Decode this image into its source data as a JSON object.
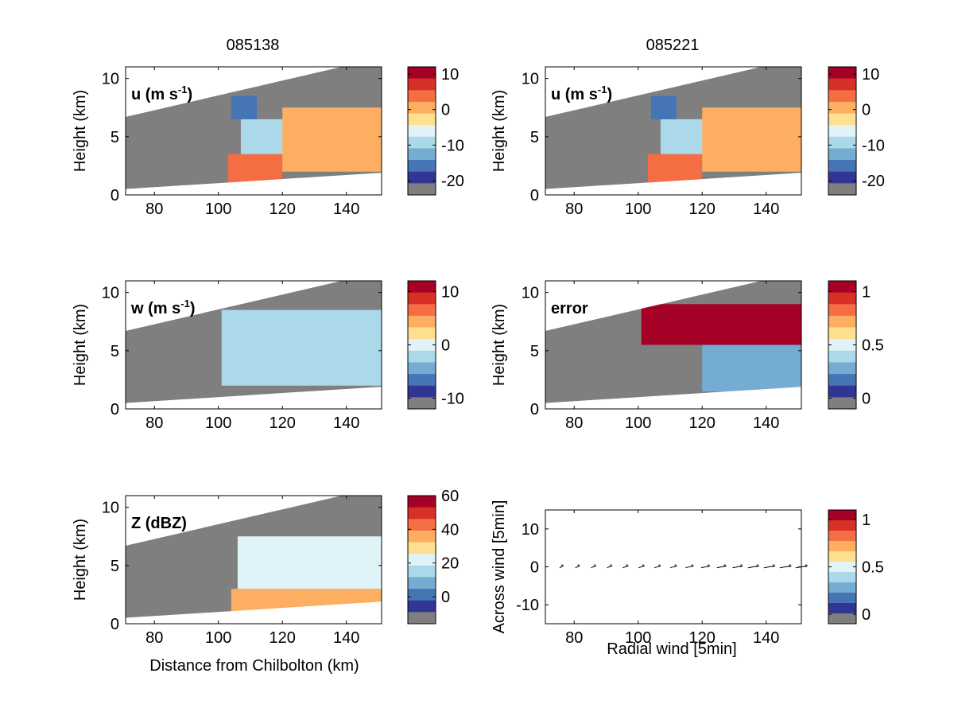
{
  "figure": {
    "columns": [
      "085138",
      "085221"
    ],
    "xlabel_bottom_left": "Distance from Chilbolton (km)",
    "xlabel_bottom_right": "Radial wind [5min]"
  },
  "colors": {
    "gray": "#7f7f7f",
    "scale": [
      "#313695",
      "#4575b4",
      "#74add1",
      "#abd9e9",
      "#e0f3f8",
      "#fee090",
      "#fdae61",
      "#f46d43",
      "#d73027",
      "#a50026"
    ]
  },
  "chart_data": [
    {
      "id": "u1",
      "type": "heatmap",
      "annotation": "u (m s-1)",
      "annotation_main": "u (m s",
      "annotation_sup": "-1",
      "annotation_tail": ")",
      "ylabel": "Height (km)",
      "xlim": [
        71,
        151
      ],
      "ylim": [
        0,
        11
      ],
      "xticks": [
        80,
        100,
        120,
        140
      ],
      "yticks": [
        0,
        5,
        10
      ],
      "colorbar": {
        "ticks": [
          10,
          0,
          -10,
          -20
        ],
        "range": [
          -24,
          12
        ]
      },
      "regions": [
        {
          "x": [
            103,
            120
          ],
          "y": [
            1.0,
            3.5
          ],
          "value": 3
        },
        {
          "x": [
            107,
            125
          ],
          "y": [
            3.5,
            6.5
          ],
          "value": -10
        },
        {
          "x": [
            120,
            151
          ],
          "y": [
            2.0,
            7.5
          ],
          "value": 2
        },
        {
          "x": [
            104,
            112
          ],
          "y": [
            6.5,
            8.5
          ],
          "value": -16
        }
      ]
    },
    {
      "id": "u2",
      "type": "heatmap",
      "annotation": "u (m s-1)",
      "annotation_main": "u (m s",
      "annotation_sup": "-1",
      "annotation_tail": ")",
      "ylabel": "Height (km)",
      "xlim": [
        71,
        151
      ],
      "ylim": [
        0,
        11
      ],
      "xticks": [
        80,
        100,
        120,
        140
      ],
      "yticks": [
        0,
        5,
        10
      ],
      "colorbar": {
        "ticks": [
          10,
          0,
          -10,
          -20
        ],
        "range": [
          -24,
          12
        ]
      },
      "regions": [
        {
          "x": [
            103,
            120
          ],
          "y": [
            1.0,
            3.5
          ],
          "value": 3
        },
        {
          "x": [
            107,
            125
          ],
          "y": [
            3.5,
            6.5
          ],
          "value": -10
        },
        {
          "x": [
            120,
            151
          ],
          "y": [
            2.0,
            7.5
          ],
          "value": 2
        },
        {
          "x": [
            104,
            112
          ],
          "y": [
            6.5,
            8.5
          ],
          "value": -16
        }
      ]
    },
    {
      "id": "w",
      "type": "heatmap",
      "annotation": "w (m s-1)",
      "annotation_main": "w (m s",
      "annotation_sup": "-1",
      "annotation_tail": ")",
      "ylabel": "Height (km)",
      "xlim": [
        71,
        151
      ],
      "ylim": [
        0,
        11
      ],
      "xticks": [
        80,
        100,
        120,
        140
      ],
      "yticks": [
        0,
        5,
        10
      ],
      "colorbar": {
        "ticks": [
          10,
          0,
          -10
        ],
        "range": [
          -12,
          12
        ]
      },
      "regions": [
        {
          "x": [
            101,
            151
          ],
          "y": [
            2.0,
            8.5
          ],
          "value": -3
        }
      ]
    },
    {
      "id": "error",
      "type": "heatmap",
      "annotation": "error",
      "annotation_main": "error",
      "annotation_sup": "",
      "annotation_tail": "",
      "ylabel": "Height (km)",
      "xlim": [
        71,
        151
      ],
      "ylim": [
        0,
        11
      ],
      "xticks": [
        80,
        100,
        120,
        140
      ],
      "yticks": [
        0,
        5,
        10
      ],
      "colorbar": {
        "ticks": [
          1,
          0.5,
          0
        ],
        "range": [
          -0.1,
          1.1
        ]
      },
      "regions": [
        {
          "x": [
            101,
            151
          ],
          "y": [
            5.5,
            9.0
          ],
          "value": 1
        },
        {
          "x": [
            120,
            151
          ],
          "y": [
            1.5,
            5.5
          ],
          "value": 0.3
        }
      ]
    },
    {
      "id": "z",
      "type": "heatmap",
      "annotation": "Z (dBZ)",
      "annotation_main": "Z (dBZ)",
      "annotation_sup": "",
      "annotation_tail": "",
      "ylabel": "Height (km)",
      "xlabel": "Distance from Chilbolton (km)",
      "xlim": [
        71,
        151
      ],
      "ylim": [
        0,
        11
      ],
      "xticks": [
        80,
        100,
        120,
        140
      ],
      "yticks": [
        0,
        5,
        10
      ],
      "colorbar": {
        "ticks": [
          60,
          40,
          20,
          0
        ],
        "range": [
          -16,
          60
        ]
      },
      "regions": [
        {
          "x": [
            104,
            151
          ],
          "y": [
            1.0,
            3.0
          ],
          "value": 35
        },
        {
          "x": [
            106,
            151
          ],
          "y": [
            3.0,
            7.5
          ],
          "value": 22
        }
      ]
    },
    {
      "id": "wind",
      "type": "scatter",
      "annotation": "",
      "ylabel": "Across wind [5min]",
      "xlabel": "Radial wind [5min]",
      "xlim": [
        71,
        151
      ],
      "ylim": [
        -15,
        15
      ],
      "xticks": [
        80,
        100,
        120,
        140
      ],
      "yticks": [
        10,
        0,
        -10
      ],
      "colorbar": {
        "ticks": [
          1,
          0.5,
          0
        ],
        "range": [
          -0.1,
          1.1
        ]
      },
      "arrows_x": [
        76,
        81,
        86,
        91,
        96,
        101,
        106,
        111,
        116,
        121,
        126,
        131,
        136,
        141,
        146,
        151
      ],
      "arrows_y": [
        0,
        0,
        0,
        0,
        0,
        0,
        0,
        0,
        0,
        0,
        0,
        0,
        0,
        0,
        0,
        0
      ],
      "arrows_len": [
        1.0,
        1.2,
        1.3,
        1.4,
        1.5,
        1.6,
        1.7,
        1.8,
        2.2,
        2.4,
        2.6,
        2.8,
        3.0,
        3.1,
        3.2,
        3.3
      ]
    }
  ]
}
